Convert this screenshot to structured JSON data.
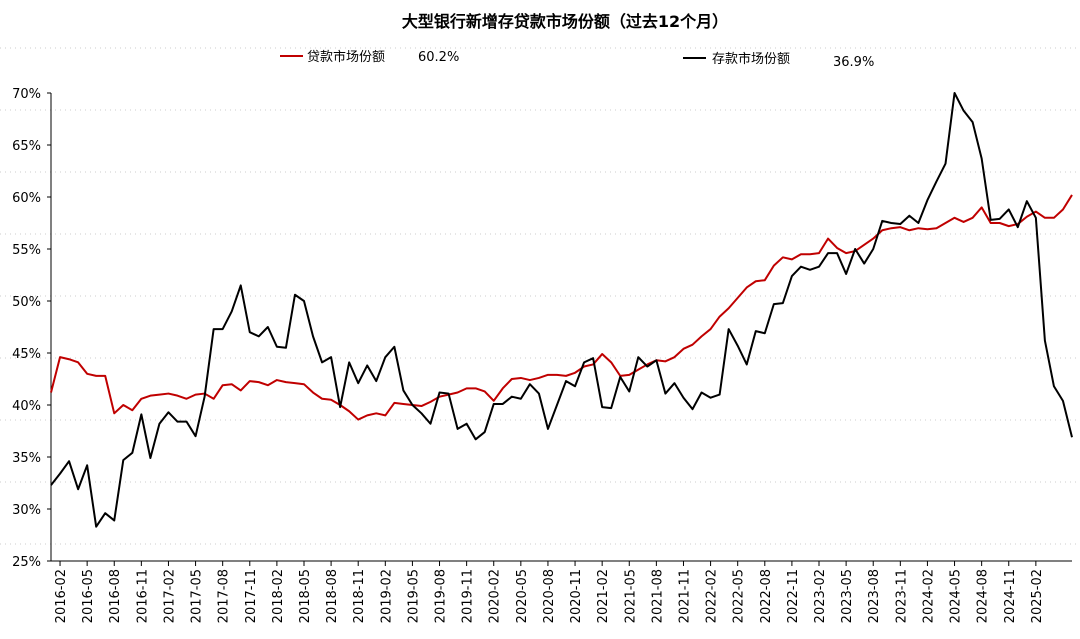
{
  "chart_data": {
    "type": "line",
    "title": "大型银行新增存贷款市场份额（过去12个月）",
    "legend_position": "top",
    "ylim": [
      25,
      70
    ],
    "y_ticks": [
      "25%",
      "30%",
      "35%",
      "40%",
      "45%",
      "50%",
      "55%",
      "60%",
      "65%",
      "70%"
    ],
    "y_tick_values": [
      25,
      30,
      35,
      40,
      45,
      50,
      55,
      60,
      65,
      70
    ],
    "x_ticks": [
      "2016-02",
      "2016-05",
      "2016-08",
      "2016-11",
      "2017-02",
      "2017-05",
      "2017-08",
      "2017-11",
      "2018-02",
      "2018-05",
      "2018-08",
      "2018-11",
      "2019-02",
      "2019-05",
      "2019-08",
      "2019-11",
      "2020-02",
      "2020-05",
      "2020-08",
      "2020-11",
      "2021-02",
      "2021-05",
      "2021-08",
      "2021-11",
      "2022-02",
      "2022-05",
      "2022-08",
      "2022-11",
      "2023-02",
      "2023-05",
      "2023-08",
      "2023-11",
      "2024-02",
      "2024-05",
      "2024-08",
      "2024-11",
      "2025-02"
    ],
    "x_start": "2016-01",
    "grid": false,
    "series": [
      {
        "name": "贷款市场份额",
        "latest_label": "60.2%",
        "color": "#c00000",
        "values": [
          41.2,
          44.6,
          44.4,
          44.1,
          43.0,
          42.8,
          42.8,
          39.2,
          40.0,
          39.5,
          40.6,
          40.9,
          41.0,
          41.1,
          40.9,
          40.6,
          41.0,
          41.1,
          40.6,
          41.9,
          42.0,
          41.4,
          42.3,
          42.2,
          41.9,
          42.4,
          42.2,
          42.1,
          42.0,
          41.2,
          40.6,
          40.5,
          40.0,
          39.4,
          38.6,
          39.0,
          39.2,
          39.0,
          40.2,
          40.1,
          40.0,
          39.9,
          40.3,
          40.8,
          41.0,
          41.2,
          41.6,
          41.6,
          41.3,
          40.4,
          41.6,
          42.5,
          42.6,
          42.4,
          42.6,
          42.9,
          42.9,
          42.8,
          43.1,
          43.7,
          43.9,
          44.9,
          44.1,
          42.8,
          42.9,
          43.4,
          43.9,
          44.3,
          44.2,
          44.6,
          45.4,
          45.8,
          46.6,
          47.3,
          48.5,
          49.3,
          50.3,
          51.3,
          51.9,
          52.0,
          53.4,
          54.2,
          54.0,
          54.5,
          54.5,
          54.6,
          56.0,
          55.1,
          54.6,
          54.8,
          55.4,
          56.0,
          56.8,
          57.0,
          57.1,
          56.8,
          57.0,
          56.9,
          57.0,
          57.5,
          58.0,
          57.6,
          58.0,
          59.0,
          57.5,
          57.5,
          57.2,
          57.4,
          58.1,
          58.6,
          58.0,
          58.0,
          58.8,
          60.2
        ]
      },
      {
        "name": "存款市场份额",
        "latest_label": "36.9%",
        "color": "#000000",
        "values": [
          32.3,
          33.4,
          34.6,
          31.9,
          34.2,
          28.3,
          29.6,
          28.9,
          34.7,
          35.4,
          39.1,
          34.9,
          38.2,
          39.3,
          38.4,
          38.4,
          37.0,
          40.8,
          47.3,
          47.3,
          49.0,
          51.5,
          47.0,
          46.6,
          47.5,
          45.6,
          45.5,
          50.6,
          50.0,
          46.6,
          44.1,
          44.6,
          39.8,
          44.1,
          42.1,
          43.8,
          42.3,
          44.6,
          45.6,
          41.4,
          40.0,
          39.2,
          38.2,
          41.2,
          41.1,
          37.7,
          38.2,
          36.7,
          37.4,
          40.1,
          40.1,
          40.8,
          40.6,
          42.0,
          41.1,
          37.7,
          40.0,
          42.3,
          41.8,
          44.1,
          44.5,
          39.8,
          39.7,
          42.7,
          41.3,
          44.6,
          43.7,
          44.3,
          41.1,
          42.1,
          40.7,
          39.6,
          41.2,
          40.7,
          41.0,
          47.3,
          45.7,
          43.9,
          47.1,
          46.9,
          49.7,
          49.8,
          52.4,
          53.3,
          53.0,
          53.3,
          54.6,
          54.6,
          52.6,
          55.0,
          53.6,
          55.0,
          57.7,
          57.5,
          57.4,
          58.2,
          57.5,
          59.7,
          61.5,
          63.2,
          70.0,
          68.3,
          67.2,
          63.7,
          57.8,
          57.9,
          58.8,
          57.1,
          59.6,
          58.0,
          46.2,
          41.8,
          40.4,
          36.9
        ]
      }
    ]
  }
}
